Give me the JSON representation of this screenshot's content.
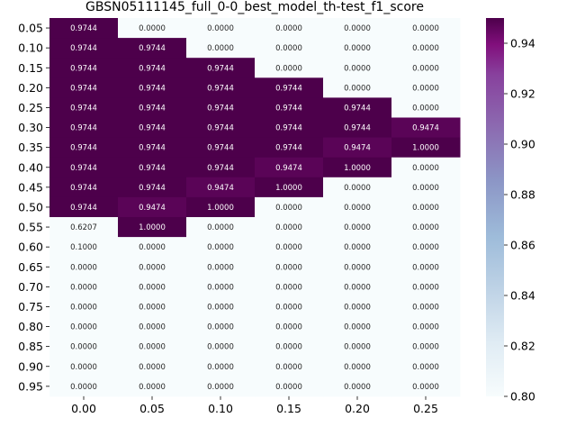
{
  "chart_data": {
    "type": "heatmap",
    "title": "GBSN05111145_full_0-0_best_model_th-test_f1_score",
    "xlabel": "",
    "ylabel": "",
    "x_categories": [
      "0.00",
      "0.05",
      "0.10",
      "0.15",
      "0.20",
      "0.25"
    ],
    "y_categories": [
      "0.05",
      "0.10",
      "0.15",
      "0.20",
      "0.25",
      "0.30",
      "0.35",
      "0.40",
      "0.45",
      "0.50",
      "0.55",
      "0.60",
      "0.65",
      "0.70",
      "0.75",
      "0.80",
      "0.85",
      "0.90",
      "0.95"
    ],
    "values": [
      [
        "0.9744",
        "0.0000",
        "0.0000",
        "0.0000",
        "0.0000",
        "0.0000"
      ],
      [
        "0.9744",
        "0.9744",
        "0.0000",
        "0.0000",
        "0.0000",
        "0.0000"
      ],
      [
        "0.9744",
        "0.9744",
        "0.9744",
        "0.0000",
        "0.0000",
        "0.0000"
      ],
      [
        "0.9744",
        "0.9744",
        "0.9744",
        "0.9744",
        "0.0000",
        "0.0000"
      ],
      [
        "0.9744",
        "0.9744",
        "0.9744",
        "0.9744",
        "0.9744",
        "0.0000"
      ],
      [
        "0.9744",
        "0.9744",
        "0.9744",
        "0.9744",
        "0.9744",
        "0.9474"
      ],
      [
        "0.9744",
        "0.9744",
        "0.9744",
        "0.9744",
        "0.9474",
        "1.0000"
      ],
      [
        "0.9744",
        "0.9744",
        "0.9744",
        "0.9474",
        "1.0000",
        "0.0000"
      ],
      [
        "0.9744",
        "0.9744",
        "0.9474",
        "1.0000",
        "0.0000",
        "0.0000"
      ],
      [
        "0.9744",
        "0.9474",
        "1.0000",
        "0.0000",
        "0.0000",
        "0.0000"
      ],
      [
        "0.6207",
        "1.0000",
        "0.0000",
        "0.0000",
        "0.0000",
        "0.0000"
      ],
      [
        "0.1000",
        "0.0000",
        "0.0000",
        "0.0000",
        "0.0000",
        "0.0000"
      ],
      [
        "0.0000",
        "0.0000",
        "0.0000",
        "0.0000",
        "0.0000",
        "0.0000"
      ],
      [
        "0.0000",
        "0.0000",
        "0.0000",
        "0.0000",
        "0.0000",
        "0.0000"
      ],
      [
        "0.0000",
        "0.0000",
        "0.0000",
        "0.0000",
        "0.0000",
        "0.0000"
      ],
      [
        "0.0000",
        "0.0000",
        "0.0000",
        "0.0000",
        "0.0000",
        "0.0000"
      ],
      [
        "0.0000",
        "0.0000",
        "0.0000",
        "0.0000",
        "0.0000",
        "0.0000"
      ],
      [
        "0.0000",
        "0.0000",
        "0.0000",
        "0.0000",
        "0.0000",
        "0.0000"
      ],
      [
        "0.0000",
        "0.0000",
        "0.0000",
        "0.0000",
        "0.0000",
        "0.0000"
      ]
    ],
    "colorbar": {
      "vmin": 0.8,
      "vmax": 0.95,
      "ticks": [
        "0.80",
        "0.82",
        "0.84",
        "0.86",
        "0.88",
        "0.90",
        "0.92",
        "0.94"
      ],
      "colormap": "BuPu",
      "low_color": "#f7fcfd",
      "high_color": "#4d004b"
    },
    "grid": false
  }
}
